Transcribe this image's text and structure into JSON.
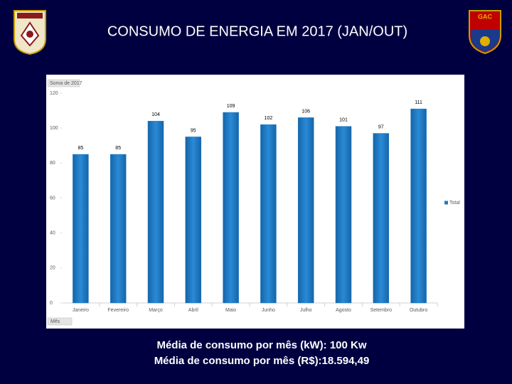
{
  "chart_data": {
    "type": "bar",
    "title": "CONSUMO DE ENERGIA EM 2017 (JAN/OUT)",
    "value_field": "Soma de 2017",
    "category_field": "Mês",
    "categories": [
      "Janeiro",
      "Fevereiro",
      "Março",
      "Abril",
      "Maio",
      "Junho",
      "Julho",
      "Agosto",
      "Setembro",
      "Outubro"
    ],
    "series": [
      {
        "name": "Total",
        "color": "#1f7bc4",
        "values": [
          85,
          85,
          104,
          95,
          109,
          102,
          106,
          101,
          97,
          111
        ]
      }
    ],
    "ylim": [
      0,
      120
    ],
    "yticks": [
      0,
      20,
      40,
      60,
      80,
      100,
      120
    ],
    "grid": false,
    "legend": "right"
  },
  "emblem_text": "GAC",
  "footer": [
    "Média de consumo por mês (kW): 100 Kw",
    "Média de consumo por mês (R$):18.594,49"
  ]
}
